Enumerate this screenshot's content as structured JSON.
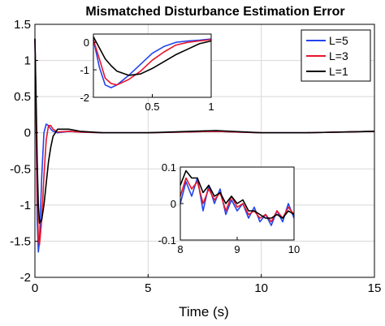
{
  "chart_data": {
    "type": "line",
    "title": "Mismatched Disturbance Estimation Error",
    "xlabel": "Time (s)",
    "ylabel": "",
    "xlim": [
      0,
      15
    ],
    "ylim": [
      -2,
      1.5
    ],
    "xticks": [
      "0",
      "5",
      "10",
      "15"
    ],
    "yticks": [
      "-2",
      "-1.5",
      "-1",
      "-0.5",
      "0",
      "0.5",
      "1",
      "1.5"
    ],
    "grid": true,
    "legend_position": "top-right",
    "series": [
      {
        "name": "L=5",
        "color": "#2244ee",
        "x": [
          0,
          0.05,
          0.1,
          0.15,
          0.2,
          0.3,
          0.4,
          0.5,
          0.6,
          0.7,
          0.8,
          1,
          1.5,
          2,
          3,
          5,
          8,
          10,
          12,
          15
        ],
        "y": [
          1.3,
          0.2,
          -1.2,
          -1.65,
          -1.5,
          -0.6,
          0.0,
          0.12,
          0.1,
          0.05,
          0.02,
          0,
          0.02,
          0.01,
          0.0,
          0.0,
          0.02,
          0.0,
          0.0,
          0.02
        ]
      },
      {
        "name": "L=3",
        "color": "#e8142a",
        "x": [
          0,
          0.05,
          0.1,
          0.15,
          0.2,
          0.3,
          0.4,
          0.5,
          0.6,
          0.7,
          0.8,
          1,
          1.5,
          2,
          3,
          5,
          8,
          10,
          12,
          15
        ],
        "y": [
          1.3,
          0.3,
          -0.9,
          -1.45,
          -1.55,
          -1.2,
          -0.6,
          -0.1,
          0.1,
          0.1,
          0.05,
          0.01,
          0.02,
          0.01,
          0.0,
          0.0,
          0.02,
          0.0,
          0.0,
          0.02
        ]
      },
      {
        "name": "L=1",
        "color": "#000000",
        "x": [
          0,
          0.05,
          0.1,
          0.15,
          0.2,
          0.3,
          0.4,
          0.5,
          0.6,
          0.7,
          0.8,
          1,
          1.5,
          2,
          3,
          5,
          8,
          10,
          12,
          15
        ],
        "y": [
          1.3,
          0.5,
          -0.4,
          -1.0,
          -1.25,
          -1.2,
          -1.0,
          -0.7,
          -0.4,
          -0.2,
          -0.05,
          0.05,
          0.05,
          0.02,
          0.0,
          0.0,
          0.03,
          0.0,
          0.0,
          0.02
        ]
      }
    ],
    "insets": [
      {
        "xlim": [
          0,
          1
        ],
        "ylim": [
          -2,
          0.3
        ],
        "xticks": [
          "0.5",
          "1"
        ],
        "yticks": [
          "0",
          "-1",
          "-2"
        ],
        "series": [
          {
            "name": "L=5",
            "x": [
              0,
              0.05,
              0.1,
              0.15,
              0.2,
              0.3,
              0.4,
              0.5,
              0.6,
              0.7,
              0.8,
              0.9,
              1.0
            ],
            "y": [
              0.1,
              -0.9,
              -1.55,
              -1.65,
              -1.55,
              -1.2,
              -0.8,
              -0.4,
              -0.15,
              0.0,
              0.05,
              0.08,
              0.12
            ]
          },
          {
            "name": "L=3",
            "x": [
              0,
              0.05,
              0.1,
              0.15,
              0.2,
              0.3,
              0.4,
              0.5,
              0.6,
              0.7,
              0.8,
              0.9,
              1.0
            ],
            "y": [
              0.1,
              -0.6,
              -1.3,
              -1.5,
              -1.55,
              -1.35,
              -1.05,
              -0.65,
              -0.35,
              -0.1,
              0.0,
              0.05,
              0.1
            ]
          },
          {
            "name": "L=1",
            "x": [
              0,
              0.05,
              0.1,
              0.15,
              0.2,
              0.3,
              0.4,
              0.5,
              0.6,
              0.7,
              0.8,
              0.9,
              1.0
            ],
            "y": [
              0.2,
              -0.2,
              -0.6,
              -0.85,
              -1.05,
              -1.2,
              -1.15,
              -0.95,
              -0.7,
              -0.45,
              -0.25,
              -0.05,
              0.05
            ]
          }
        ]
      },
      {
        "xlim": [
          8,
          10
        ],
        "ylim": [
          -0.1,
          0.1
        ],
        "xticks": [
          "8",
          "9",
          "10"
        ],
        "yticks": [
          "0.1",
          "0",
          "-0.1"
        ],
        "series": [
          {
            "name": "L=5",
            "x": [
              8,
              8.1,
              8.2,
              8.3,
              8.4,
              8.5,
              8.6,
              8.7,
              8.8,
              8.9,
              9.0,
              9.1,
              9.2,
              9.3,
              9.4,
              9.5,
              9.6,
              9.7,
              9.8,
              9.9,
              10
            ],
            "y": [
              0.0,
              0.06,
              0.02,
              0.07,
              -0.02,
              0.05,
              0.0,
              0.04,
              -0.03,
              0.01,
              -0.02,
              0.0,
              -0.04,
              -0.01,
              -0.05,
              -0.03,
              -0.06,
              -0.02,
              -0.05,
              0.0,
              -0.04
            ]
          },
          {
            "name": "L=3",
            "x": [
              8,
              8.1,
              8.2,
              8.3,
              8.4,
              8.5,
              8.6,
              8.7,
              8.8,
              8.9,
              9.0,
              9.1,
              9.2,
              9.3,
              9.4,
              9.5,
              9.6,
              9.7,
              9.8,
              9.9,
              10
            ],
            "y": [
              0.02,
              0.07,
              0.04,
              0.06,
              0.0,
              0.04,
              0.01,
              0.03,
              -0.02,
              0.02,
              -0.01,
              0.0,
              -0.03,
              -0.02,
              -0.04,
              -0.03,
              -0.05,
              -0.02,
              -0.04,
              -0.01,
              -0.03
            ]
          },
          {
            "name": "L=1",
            "x": [
              8,
              8.1,
              8.2,
              8.3,
              8.4,
              8.5,
              8.6,
              8.7,
              8.8,
              8.9,
              9.0,
              9.1,
              9.2,
              9.3,
              9.4,
              9.5,
              9.6,
              9.7,
              9.8,
              9.9,
              10
            ],
            "y": [
              0.05,
              0.09,
              0.07,
              0.07,
              0.03,
              0.05,
              0.02,
              0.03,
              0.0,
              0.02,
              0.0,
              0.01,
              -0.02,
              -0.02,
              -0.03,
              -0.04,
              -0.04,
              -0.03,
              -0.04,
              -0.02,
              -0.03
            ]
          }
        ]
      }
    ]
  }
}
